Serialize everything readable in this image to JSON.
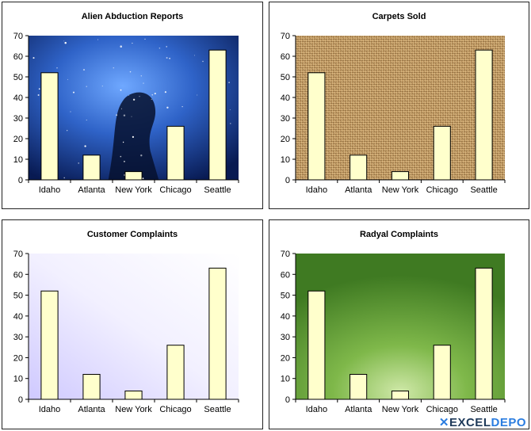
{
  "colors": {
    "bar_fill": "#ffffcc",
    "bar_stroke": "#000000",
    "bg_space": "#0b2a7a",
    "bg_burlap": "#c59b63",
    "bg_lavender": "#ddd8ff",
    "bg_green": "#5c9a2e"
  },
  "chart_data": [
    {
      "type": "bar",
      "title": "Alien Abduction Reports",
      "background": "space-nebula-image",
      "categories": [
        "Idaho",
        "Atlanta",
        "New York",
        "Chicago",
        "Seattle"
      ],
      "values": [
        52,
        12,
        4,
        26,
        63
      ],
      "ylim": [
        0,
        70
      ],
      "yticks": [
        "0",
        "10",
        "20",
        "30",
        "40",
        "50",
        "60",
        "70"
      ],
      "grid": false,
      "legend": "none"
    },
    {
      "type": "bar",
      "title": "Carpets Sold",
      "background": "burlap-texture",
      "categories": [
        "Idaho",
        "Atlanta",
        "New York",
        "Chicago",
        "Seattle"
      ],
      "values": [
        52,
        12,
        4,
        26,
        63
      ],
      "ylim": [
        0,
        70
      ],
      "yticks": [
        "0",
        "10",
        "20",
        "30",
        "40",
        "50",
        "60",
        "70"
      ],
      "grid": false,
      "legend": "none"
    },
    {
      "type": "bar",
      "title": "Customer Complaints",
      "background": "lavender-gradient",
      "categories": [
        "Idaho",
        "Atlanta",
        "New York",
        "Chicago",
        "Seattle"
      ],
      "values": [
        52,
        12,
        4,
        26,
        63
      ],
      "ylim": [
        0,
        70
      ],
      "yticks": [
        "0",
        "10",
        "20",
        "30",
        "40",
        "50",
        "60",
        "70"
      ],
      "grid": false,
      "legend": "none"
    },
    {
      "type": "bar",
      "title": "Radyal Complaints",
      "background": "green-radial-gradient",
      "categories": [
        "Idaho",
        "Atlanta",
        "New York",
        "Chicago",
        "Seattle"
      ],
      "values": [
        52,
        12,
        4,
        26,
        63
      ],
      "ylim": [
        0,
        70
      ],
      "yticks": [
        "0",
        "10",
        "20",
        "30",
        "40",
        "50",
        "60",
        "70"
      ],
      "grid": false,
      "legend": "none"
    }
  ],
  "watermark": {
    "part1": "EXCEL",
    "part2": "DEPO",
    "icon": "excel-x-logo-icon"
  }
}
